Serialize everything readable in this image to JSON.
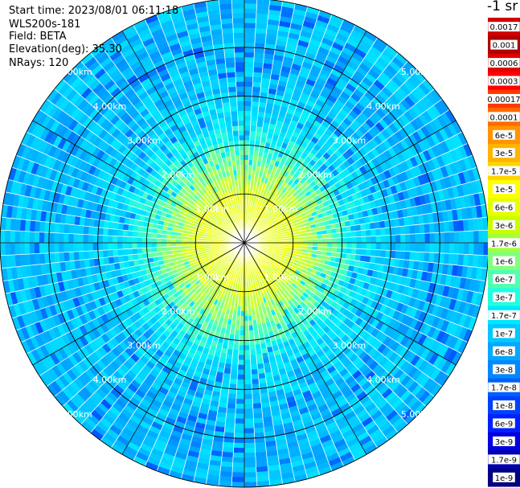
{
  "info": {
    "start_time": "Start time: 2023/08/01 06:11:18",
    "instrument": "WLS200s-181",
    "field": "Field: BETA",
    "elevation": "Elevation(deg): 35.30",
    "nrays": "NRays: 120"
  },
  "colorbar": {
    "title": "-1 sr",
    "labels": [
      "0.0017",
      "0.001",
      "0.0006",
      "0.0003",
      "0.00017",
      "0.0001",
      "6e-5",
      "3e-5",
      "1.7e-5",
      "1e-5",
      "6e-6",
      "3e-6",
      "1.7e-6",
      "1e-6",
      "6e-7",
      "3e-7",
      "1.7e-7",
      "1e-7",
      "6e-8",
      "3e-8",
      "1.7e-8",
      "1e-8",
      "6e-9",
      "3e-9",
      "1.7e-9",
      "1e-9"
    ],
    "colors": [
      "#d00000",
      "#b00000",
      "#e00000",
      "#ff0000",
      "#ff3a00",
      "#ff6a00",
      "#ff9400",
      "#ffb400",
      "#ffd400",
      "#ffff00",
      "#e6ff00",
      "#c8ff00",
      "#a0ff40",
      "#80ff80",
      "#50ffb0",
      "#20ffe0",
      "#00e8ff",
      "#00c8ff",
      "#00a8ff",
      "#0088ff",
      "#0060ff",
      "#0040ff",
      "#0020ff",
      "#0000e0",
      "#0000b0",
      "#000080"
    ]
  },
  "chart_data": {
    "type": "heatmap",
    "projection": "polar PPI",
    "field": "BETA",
    "nrays": 120,
    "max_range_km": 5.0,
    "range_rings_km": [
      1,
      2,
      3,
      4,
      5
    ],
    "ring_labels": [
      "1.00km",
      "2.00km",
      "3.00km",
      "4.00km",
      "5.00km"
    ],
    "radial_spokes": 12,
    "value_profile": [
      {
        "range_km": 0.0,
        "beta": 3e-06
      },
      {
        "range_km": 1.0,
        "beta": 1.7e-06
      },
      {
        "range_km": 1.8,
        "beta": 3e-07
      },
      {
        "range_km": 2.5,
        "beta": 1e-07
      },
      {
        "range_km": 3.5,
        "beta": 6e-08
      },
      {
        "range_km": 5.0,
        "beta": 6e-08
      }
    ]
  }
}
